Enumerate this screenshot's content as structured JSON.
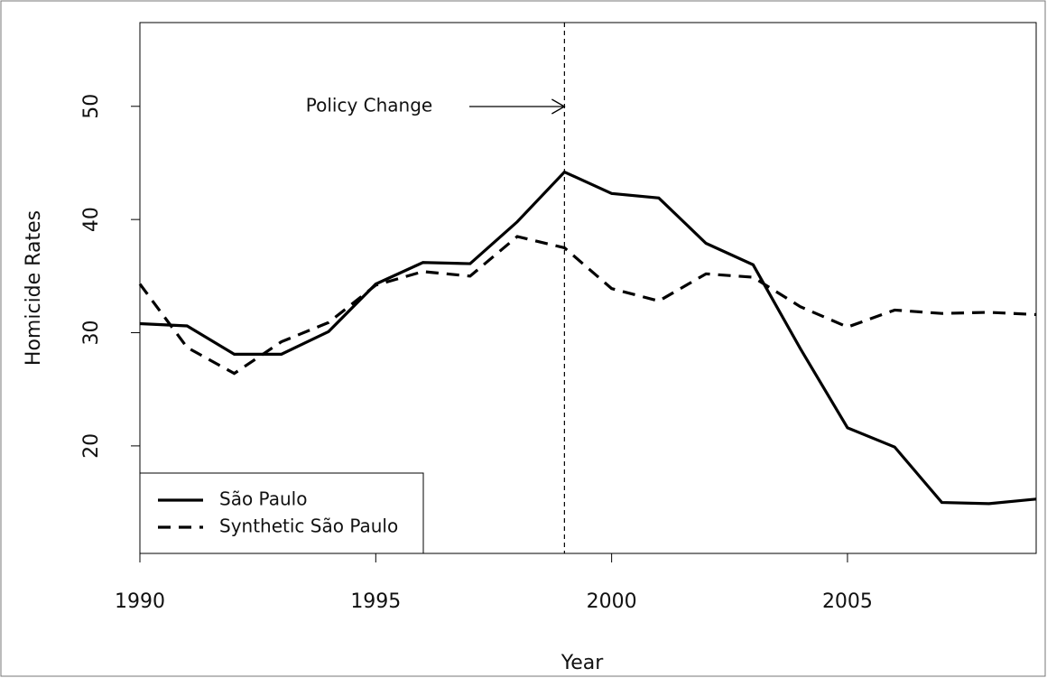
{
  "chart_data": {
    "type": "line",
    "x_label": "Year",
    "y_label": "Homicide Rates",
    "x": [
      1990,
      1991,
      1992,
      1993,
      1994,
      1995,
      1996,
      1997,
      1998,
      1999,
      2000,
      2001,
      2002,
      2003,
      2004,
      2005,
      2006,
      2007,
      2008,
      2009
    ],
    "series": [
      {
        "name": "São Paulo",
        "color": "#000000",
        "dash": false,
        "values": [
          30.8,
          30.6,
          28.1,
          28.1,
          30.1,
          34.3,
          36.2,
          36.1,
          39.8,
          44.2,
          42.3,
          41.9,
          37.9,
          36.0,
          28.6,
          21.6,
          19.9,
          15.0,
          14.9,
          15.3
        ]
      },
      {
        "name": "Synthetic São Paulo",
        "color": "#000000",
        "dash": true,
        "values": [
          34.3,
          28.7,
          26.4,
          29.2,
          30.9,
          34.2,
          35.4,
          35.0,
          38.5,
          37.5,
          33.9,
          32.8,
          35.2,
          34.9,
          32.3,
          30.5,
          32.0,
          31.7,
          31.8,
          31.6
        ]
      }
    ],
    "xlim": [
      1990,
      2009
    ],
    "ylim": [
      10.5,
      57.4
    ],
    "xticks": [
      1990,
      1995,
      2000,
      2005
    ],
    "yticks": [
      20,
      30,
      40,
      50
    ],
    "vline": 1999,
    "annotation": "Policy Change",
    "legend": "bottom-left"
  }
}
